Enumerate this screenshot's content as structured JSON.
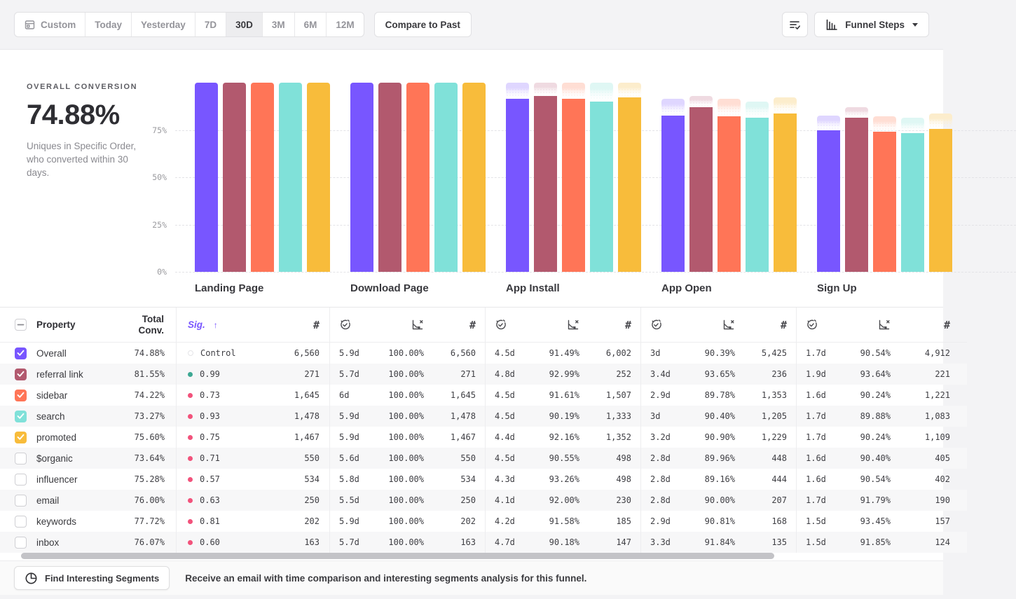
{
  "toolbar": {
    "date_ranges": [
      "Custom",
      "Today",
      "Yesterday",
      "7D",
      "30D",
      "3M",
      "6M",
      "12M"
    ],
    "active_range": "30D",
    "compare_label": "Compare to Past",
    "view_label": "Funnel Steps",
    "icons": {
      "custom_range": "calendar-icon",
      "right_button": "list-check-icon",
      "view_button": "bar-chart-icon",
      "view_caret": "caret-down-icon"
    }
  },
  "summary": {
    "title": "OVERALL CONVERSION",
    "value": "74.88%",
    "description": "Uniques in Specific Order, who converted within 30 days."
  },
  "chart_data": {
    "type": "bar",
    "title": "",
    "categories": [
      "Landing Page",
      "Download Page",
      "App Install",
      "App Open",
      "Sign Up"
    ],
    "series": [
      {
        "name": "Overall",
        "color": "#7856FF",
        "tint": "#DFD6FF",
        "values": [
          100,
          100,
          91.49,
          82.7,
          74.88
        ]
      },
      {
        "name": "referral link",
        "color": "#B2596E",
        "tint": "#EFDAE1",
        "values": [
          100,
          100,
          92.99,
          87.08,
          81.55
        ]
      },
      {
        "name": "sidebar",
        "color": "#FF7557",
        "tint": "#FFDED4",
        "values": [
          100,
          100,
          91.61,
          82.25,
          74.22
        ]
      },
      {
        "name": "search",
        "color": "#80E1D9",
        "tint": "#DFF7F4",
        "values": [
          100,
          100,
          90.19,
          81.53,
          73.27
        ]
      },
      {
        "name": "promoted",
        "color": "#F8BC3B",
        "tint": "#FCEDCC",
        "values": [
          100,
          100,
          92.16,
          83.78,
          75.6
        ]
      }
    ],
    "y_ticks": [
      "75%",
      "50%",
      "25%",
      "0%"
    ],
    "ylim": [
      0,
      100
    ],
    "grid": "dashed-horizontal",
    "legend_position": "none"
  },
  "table": {
    "columns": {
      "property": "Property",
      "total_conv": "Total\nConv.",
      "sig": "Sig.",
      "sort_arrow": "↑",
      "count_symbol": "#",
      "step_icons": [
        "stopwatch-check-icon",
        "funnel-loss-icon",
        "hash-icon"
      ]
    },
    "select_all_state": "indeterminate",
    "sig_colors": {
      "control": "#e4e4e7",
      "high": "#3DA893",
      "low": "#F2527B"
    },
    "rows": [
      {
        "property": "Overall",
        "checked": true,
        "color": "#7856FF",
        "total_conv": "74.88%",
        "sig": "Control",
        "sig_type": "control",
        "count": "6,560",
        "steps": [
          {
            "time": "5.9d",
            "conv": "100.00%",
            "count": "6,560"
          },
          {
            "time": "4.5d",
            "conv": "91.49%",
            "count": "6,002"
          },
          {
            "time": "3d",
            "conv": "90.39%",
            "count": "5,425"
          },
          {
            "time": "1.7d",
            "conv": "90.54%",
            "count": "4,912"
          }
        ]
      },
      {
        "property": "referral link",
        "checked": true,
        "color": "#B2596E",
        "total_conv": "81.55%",
        "sig": "0.99",
        "sig_type": "high",
        "count": "271",
        "steps": [
          {
            "time": "5.7d",
            "conv": "100.00%",
            "count": "271"
          },
          {
            "time": "4.8d",
            "conv": "92.99%",
            "count": "252"
          },
          {
            "time": "3.4d",
            "conv": "93.65%",
            "count": "236"
          },
          {
            "time": "1.9d",
            "conv": "93.64%",
            "count": "221"
          }
        ]
      },
      {
        "property": "sidebar",
        "checked": true,
        "color": "#FF7557",
        "total_conv": "74.22%",
        "sig": "0.73",
        "sig_type": "low",
        "count": "1,645",
        "steps": [
          {
            "time": "6d",
            "conv": "100.00%",
            "count": "1,645"
          },
          {
            "time": "4.5d",
            "conv": "91.61%",
            "count": "1,507"
          },
          {
            "time": "2.9d",
            "conv": "89.78%",
            "count": "1,353"
          },
          {
            "time": "1.6d",
            "conv": "90.24%",
            "count": "1,221"
          }
        ]
      },
      {
        "property": "search",
        "checked": true,
        "color": "#80E1D9",
        "total_conv": "73.27%",
        "sig": "0.93",
        "sig_type": "low",
        "count": "1,478",
        "steps": [
          {
            "time": "5.9d",
            "conv": "100.00%",
            "count": "1,478"
          },
          {
            "time": "4.5d",
            "conv": "90.19%",
            "count": "1,333"
          },
          {
            "time": "3d",
            "conv": "90.40%",
            "count": "1,205"
          },
          {
            "time": "1.7d",
            "conv": "89.88%",
            "count": "1,083"
          }
        ]
      },
      {
        "property": "promoted",
        "checked": true,
        "color": "#F8BC3B",
        "total_conv": "75.60%",
        "sig": "0.75",
        "sig_type": "low",
        "count": "1,467",
        "steps": [
          {
            "time": "5.9d",
            "conv": "100.00%",
            "count": "1,467"
          },
          {
            "time": "4.4d",
            "conv": "92.16%",
            "count": "1,352"
          },
          {
            "time": "3.2d",
            "conv": "90.90%",
            "count": "1,229"
          },
          {
            "time": "1.7d",
            "conv": "90.24%",
            "count": "1,109"
          }
        ]
      },
      {
        "property": "$organic",
        "checked": false,
        "color": null,
        "total_conv": "73.64%",
        "sig": "0.71",
        "sig_type": "low",
        "count": "550",
        "steps": [
          {
            "time": "5.6d",
            "conv": "100.00%",
            "count": "550"
          },
          {
            "time": "4.5d",
            "conv": "90.55%",
            "count": "498"
          },
          {
            "time": "2.8d",
            "conv": "89.96%",
            "count": "448"
          },
          {
            "time": "1.6d",
            "conv": "90.40%",
            "count": "405"
          }
        ]
      },
      {
        "property": "influencer",
        "checked": false,
        "color": null,
        "total_conv": "75.28%",
        "sig": "0.57",
        "sig_type": "low",
        "count": "534",
        "steps": [
          {
            "time": "5.8d",
            "conv": "100.00%",
            "count": "534"
          },
          {
            "time": "4.3d",
            "conv": "93.26%",
            "count": "498"
          },
          {
            "time": "2.8d",
            "conv": "89.16%",
            "count": "444"
          },
          {
            "time": "1.6d",
            "conv": "90.54%",
            "count": "402"
          }
        ]
      },
      {
        "property": "email",
        "checked": false,
        "color": null,
        "total_conv": "76.00%",
        "sig": "0.63",
        "sig_type": "low",
        "count": "250",
        "steps": [
          {
            "time": "5.5d",
            "conv": "100.00%",
            "count": "250"
          },
          {
            "time": "4.1d",
            "conv": "92.00%",
            "count": "230"
          },
          {
            "time": "2.8d",
            "conv": "90.00%",
            "count": "207"
          },
          {
            "time": "1.7d",
            "conv": "91.79%",
            "count": "190"
          }
        ]
      },
      {
        "property": "keywords",
        "checked": false,
        "color": null,
        "total_conv": "77.72%",
        "sig": "0.81",
        "sig_type": "low",
        "count": "202",
        "steps": [
          {
            "time": "5.9d",
            "conv": "100.00%",
            "count": "202"
          },
          {
            "time": "4.2d",
            "conv": "91.58%",
            "count": "185"
          },
          {
            "time": "2.9d",
            "conv": "90.81%",
            "count": "168"
          },
          {
            "time": "1.5d",
            "conv": "93.45%",
            "count": "157"
          }
        ]
      },
      {
        "property": "inbox",
        "checked": false,
        "color": null,
        "total_conv": "76.07%",
        "sig": "0.60",
        "sig_type": "low",
        "count": "163",
        "steps": [
          {
            "time": "5.7d",
            "conv": "100.00%",
            "count": "163"
          },
          {
            "time": "4.7d",
            "conv": "90.18%",
            "count": "147"
          },
          {
            "time": "3.3d",
            "conv": "91.84%",
            "count": "135"
          },
          {
            "time": "1.5d",
            "conv": "91.85%",
            "count": "124"
          }
        ]
      }
    ]
  },
  "footer": {
    "button_label": "Find Interesting Segments",
    "button_icon": "segment-circle-icon",
    "message": "Receive an email with time comparison and interesting segments analysis for this funnel."
  }
}
